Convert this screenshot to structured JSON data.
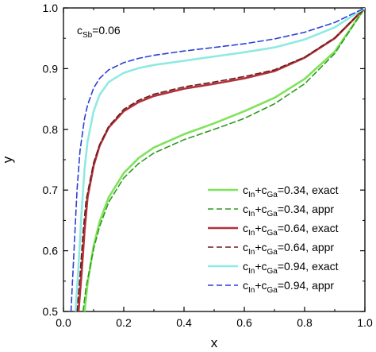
{
  "chart_data": {
    "type": "line",
    "xlabel": "x",
    "ylabel": "y",
    "xlim": [
      0.0,
      1.0
    ],
    "ylim": [
      0.5,
      1.0
    ],
    "xticks": [
      "0.0",
      "0.2",
      "0.4",
      "0.6",
      "0.8",
      "1.0"
    ],
    "yticks": [
      "0.5",
      "0.6",
      "0.7",
      "0.8",
      "0.9",
      "1.0"
    ],
    "annotation": {
      "base": "c",
      "sub": "Sb",
      "rest": "=0.06"
    },
    "legend_position": "bottom-right",
    "series": [
      {
        "name": "cIn+cGa=0.34, exact",
        "legend": {
          "c1": "c",
          "s1": "In",
          "plus": "+c",
          "s2": "Ga",
          "rest": "=0.34, exact"
        },
        "color": "#7ee35a",
        "dash": "solid",
        "x": [
          0.07,
          0.08,
          0.1,
          0.12,
          0.15,
          0.2,
          0.25,
          0.3,
          0.4,
          0.5,
          0.6,
          0.7,
          0.8,
          0.9,
          1.0
        ],
        "y": [
          0.5,
          0.546,
          0.608,
          0.648,
          0.688,
          0.728,
          0.753,
          0.77,
          0.792,
          0.81,
          0.83,
          0.852,
          0.883,
          0.928,
          1.0
        ]
      },
      {
        "name": "cIn+cGa=0.34, appr",
        "legend": {
          "c1": "c",
          "s1": "In",
          "plus": "+c",
          "s2": "Ga",
          "rest": "=0.34, appr"
        },
        "color": "#2f9a1f",
        "dash": "dashed",
        "x": [
          0.065,
          0.075,
          0.1,
          0.12,
          0.15,
          0.2,
          0.25,
          0.3,
          0.4,
          0.5,
          0.6,
          0.7,
          0.8,
          0.9,
          1.0
        ],
        "y": [
          0.5,
          0.54,
          0.603,
          0.64,
          0.68,
          0.72,
          0.744,
          0.761,
          0.783,
          0.8,
          0.818,
          0.842,
          0.875,
          0.925,
          1.0
        ]
      },
      {
        "name": "cIn+cGa=0.64, exact",
        "legend": {
          "c1": "c",
          "s1": "In",
          "plus": "+c",
          "s2": "Ga",
          "rest": "=0.64, exact"
        },
        "color": "#b2303a",
        "dash": "solid",
        "x": [
          0.05,
          0.06,
          0.07,
          0.08,
          0.1,
          0.12,
          0.15,
          0.2,
          0.25,
          0.3,
          0.4,
          0.5,
          0.6,
          0.7,
          0.8,
          0.9,
          1.0
        ],
        "y": [
          0.5,
          0.562,
          0.633,
          0.688,
          0.74,
          0.773,
          0.803,
          0.83,
          0.845,
          0.855,
          0.867,
          0.875,
          0.884,
          0.896,
          0.918,
          0.95,
          1.0
        ]
      },
      {
        "name": "cIn+cGa=0.64, appr",
        "legend": {
          "c1": "c",
          "s1": "In",
          "plus": "+c",
          "s2": "Ga",
          "rest": "=0.64, appr"
        },
        "color": "#6b1e1e",
        "dash": "dashed",
        "x": [
          0.045,
          0.055,
          0.065,
          0.075,
          0.1,
          0.12,
          0.15,
          0.2,
          0.25,
          0.3,
          0.4,
          0.5,
          0.6,
          0.7,
          0.8,
          0.9,
          1.0
        ],
        "y": [
          0.5,
          0.56,
          0.63,
          0.683,
          0.745,
          0.775,
          0.805,
          0.833,
          0.848,
          0.858,
          0.87,
          0.878,
          0.887,
          0.898,
          0.919,
          0.951,
          1.0
        ]
      },
      {
        "name": "cIn+cGa=0.94, exact",
        "legend": {
          "c1": "c",
          "s1": "In",
          "plus": "+c",
          "s2": "Ga",
          "rest": "=0.94, exact"
        },
        "color": "#8eeae2",
        "dash": "solid",
        "x": [
          0.04,
          0.05,
          0.06,
          0.07,
          0.08,
          0.1,
          0.12,
          0.15,
          0.2,
          0.25,
          0.3,
          0.4,
          0.5,
          0.6,
          0.7,
          0.8,
          0.9,
          1.0
        ],
        "y": [
          0.5,
          0.575,
          0.663,
          0.735,
          0.78,
          0.83,
          0.857,
          0.878,
          0.893,
          0.901,
          0.906,
          0.913,
          0.92,
          0.927,
          0.935,
          0.948,
          0.968,
          1.0
        ]
      },
      {
        "name": "cIn+cGa=0.94, appr",
        "legend": {
          "c1": "c",
          "s1": "In",
          "plus": "+c",
          "s2": "Ga",
          "rest": "=0.94, appr"
        },
        "color": "#2a3fd6",
        "dash": "dashed",
        "x": [
          0.025,
          0.035,
          0.045,
          0.055,
          0.07,
          0.08,
          0.1,
          0.12,
          0.15,
          0.2,
          0.25,
          0.3,
          0.4,
          0.5,
          0.6,
          0.7,
          0.8,
          0.9,
          1.0
        ],
        "y": [
          0.5,
          0.6,
          0.7,
          0.765,
          0.818,
          0.84,
          0.868,
          0.884,
          0.898,
          0.91,
          0.917,
          0.922,
          0.929,
          0.935,
          0.941,
          0.949,
          0.96,
          0.976,
          1.0
        ]
      }
    ]
  }
}
